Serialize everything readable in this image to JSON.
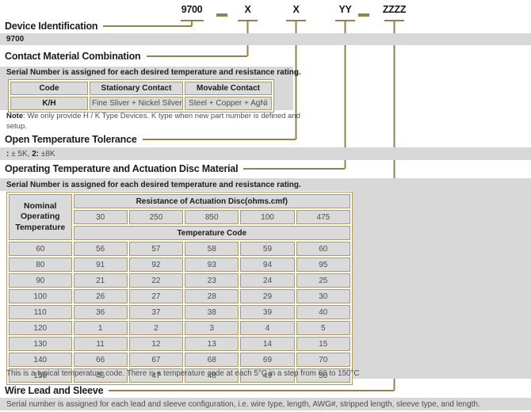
{
  "part_number": {
    "device": "9700",
    "separator": "-",
    "x1": "X",
    "x2": "X",
    "yy": "YY",
    "zzzz": "ZZZZ"
  },
  "device_identification": {
    "heading": "Device Identification",
    "value_bar": "9700"
  },
  "contact_material": {
    "heading": "Contact Material Combination",
    "serial_note": "Serial Number is assigned for each desired temperature and resistance rating.",
    "table": {
      "headers": [
        "Code",
        "Stationary Contact",
        "Movable Contact"
      ],
      "row": [
        "K/H",
        "Fine Sliver + Nickel Silver",
        "Steel + Copper + AgNi"
      ]
    },
    "note_label": "Note",
    "note_text": ": We only provide H / K Type Devices. K type when new part number is defined and setup."
  },
  "open_temperature_tolerance": {
    "heading": "Open Temperature Tolerance",
    "option1_code": ":",
    "option1_value": "± 5K,",
    "option2_code": "2:",
    "option2_value": "±8K"
  },
  "operating_temperature": {
    "heading": "Operating Temperature and Actuation Disc Material",
    "serial_note": "Serial Number is assigned for each desired temperature and resistance rating.",
    "footnote": "This is a typical temperature code. There is a temperature code at each 5°C in a step from 60 to 150°C"
  },
  "temperature_table": {
    "corner_header": "Nominal Operating Temperature",
    "resistance_header": "Resistance of Actuation Disc(ohms.cmf)",
    "resistance_columns": [
      "30",
      "250",
      "850",
      "100",
      "475"
    ],
    "code_header": "Temperature Code",
    "rows": [
      [
        "60",
        "56",
        "57",
        "58",
        "59",
        "60"
      ],
      [
        "80",
        "91",
        "92",
        "93",
        "94",
        "95"
      ],
      [
        "90",
        "21",
        "22",
        "23",
        "24",
        "25"
      ],
      [
        "100",
        "26",
        "27",
        "28",
        "29",
        "30"
      ],
      [
        "110",
        "36",
        "37",
        "38",
        "39",
        "40"
      ],
      [
        "120",
        "1",
        "2",
        "3",
        "4",
        "5"
      ],
      [
        "130",
        "11",
        "12",
        "13",
        "14",
        "15"
      ],
      [
        "140",
        "66",
        "67",
        "68",
        "69",
        "70"
      ],
      [
        "150",
        "46",
        "47",
        "48",
        "49",
        "50"
      ]
    ]
  },
  "wire_lead": {
    "heading": "Wire Lead and Sleeve",
    "description": "Serial number is assigned for each lead and sleeve configuration, i.e. wire type, length, AWG#, stripped length, sleeve type, and length."
  },
  "colors": {
    "accent_gold": "#93834a",
    "table_border_gold": "#ab9b60",
    "section_gray": "#d8d8d8"
  }
}
